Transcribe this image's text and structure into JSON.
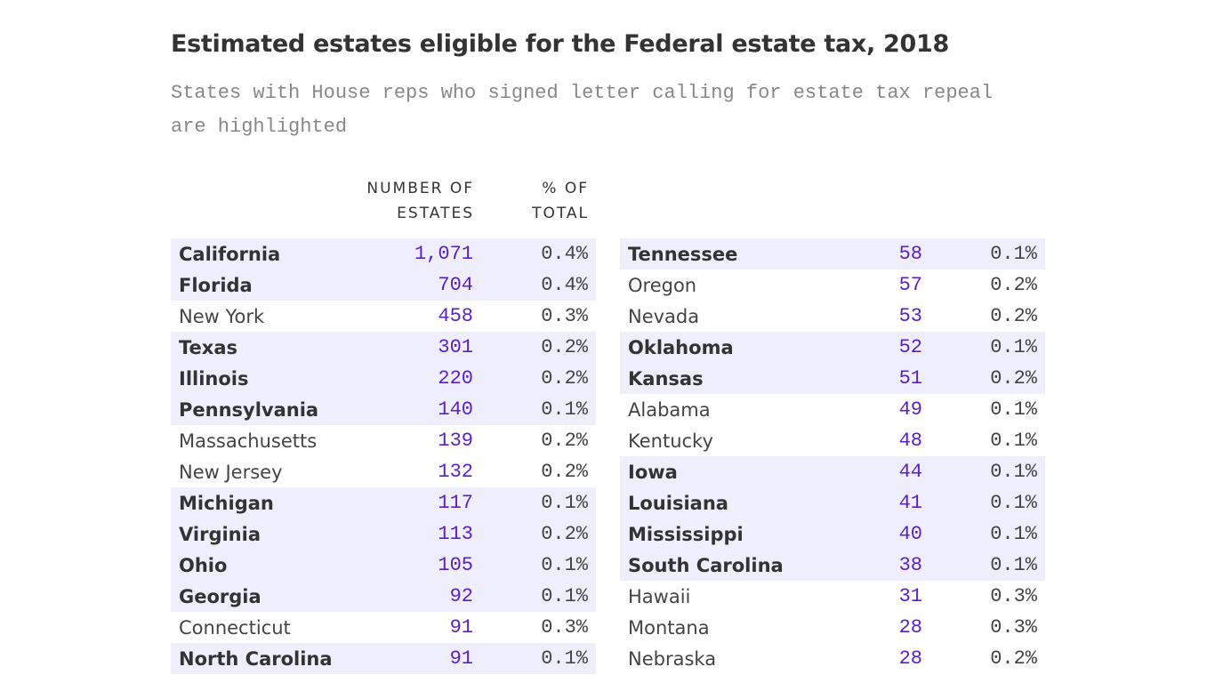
{
  "chart_data": {
    "type": "table",
    "title": "Estimated estates eligible for the Federal estate tax, 2018",
    "subtitle": "States with House reps who signed letter calling for estate tax repeal are highlighted",
    "columns": [
      "",
      "NUMBER OF ESTATES",
      "% OF TOTAL"
    ],
    "highlight_color": "#efeefc",
    "number_color": "#5a1fc8",
    "rows": [
      {
        "state": "California",
        "estates": "1,071",
        "pct": "0.4%",
        "highlighted": true
      },
      {
        "state": "Florida",
        "estates": "704",
        "pct": "0.4%",
        "highlighted": true
      },
      {
        "state": "New York",
        "estates": "458",
        "pct": "0.3%",
        "highlighted": false
      },
      {
        "state": "Texas",
        "estates": "301",
        "pct": "0.2%",
        "highlighted": true
      },
      {
        "state": "Illinois",
        "estates": "220",
        "pct": "0.2%",
        "highlighted": true
      },
      {
        "state": "Pennsylvania",
        "estates": "140",
        "pct": "0.1%",
        "highlighted": true
      },
      {
        "state": "Massachusetts",
        "estates": "139",
        "pct": "0.2%",
        "highlighted": false
      },
      {
        "state": "New Jersey",
        "estates": "132",
        "pct": "0.2%",
        "highlighted": false
      },
      {
        "state": "Michigan",
        "estates": "117",
        "pct": "0.1%",
        "highlighted": true
      },
      {
        "state": "Virginia",
        "estates": "113",
        "pct": "0.2%",
        "highlighted": true
      },
      {
        "state": "Ohio",
        "estates": "105",
        "pct": "0.1%",
        "highlighted": true
      },
      {
        "state": "Georgia",
        "estates": "92",
        "pct": "0.1%",
        "highlighted": true
      },
      {
        "state": "Connecticut",
        "estates": "91",
        "pct": "0.3%",
        "highlighted": false
      },
      {
        "state": "North Carolina",
        "estates": "91",
        "pct": "0.1%",
        "highlighted": true
      },
      {
        "state": "Tennessee",
        "estates": "58",
        "pct": "0.1%",
        "highlighted": true
      },
      {
        "state": "Oregon",
        "estates": "57",
        "pct": "0.2%",
        "highlighted": false
      },
      {
        "state": "Nevada",
        "estates": "53",
        "pct": "0.2%",
        "highlighted": false
      },
      {
        "state": "Oklahoma",
        "estates": "52",
        "pct": "0.1%",
        "highlighted": true
      },
      {
        "state": "Kansas",
        "estates": "51",
        "pct": "0.2%",
        "highlighted": true
      },
      {
        "state": "Alabama",
        "estates": "49",
        "pct": "0.1%",
        "highlighted": false
      },
      {
        "state": "Kentucky",
        "estates": "48",
        "pct": "0.1%",
        "highlighted": false
      },
      {
        "state": "Iowa",
        "estates": "44",
        "pct": "0.1%",
        "highlighted": true
      },
      {
        "state": "Louisiana",
        "estates": "41",
        "pct": "0.1%",
        "highlighted": true
      },
      {
        "state": "Mississippi",
        "estates": "40",
        "pct": "0.1%",
        "highlighted": true
      },
      {
        "state": "South Carolina",
        "estates": "38",
        "pct": "0.1%",
        "highlighted": true
      },
      {
        "state": "Hawaii",
        "estates": "31",
        "pct": "0.3%",
        "highlighted": false
      },
      {
        "state": "Montana",
        "estates": "28",
        "pct": "0.3%",
        "highlighted": false
      },
      {
        "state": "Nebraska",
        "estates": "28",
        "pct": "0.2%",
        "highlighted": false
      }
    ]
  },
  "headers": {
    "num_line1": "NUMBER OF",
    "num_line2": "ESTATES",
    "pct_line1": "% OF",
    "pct_line2": "TOTAL"
  }
}
